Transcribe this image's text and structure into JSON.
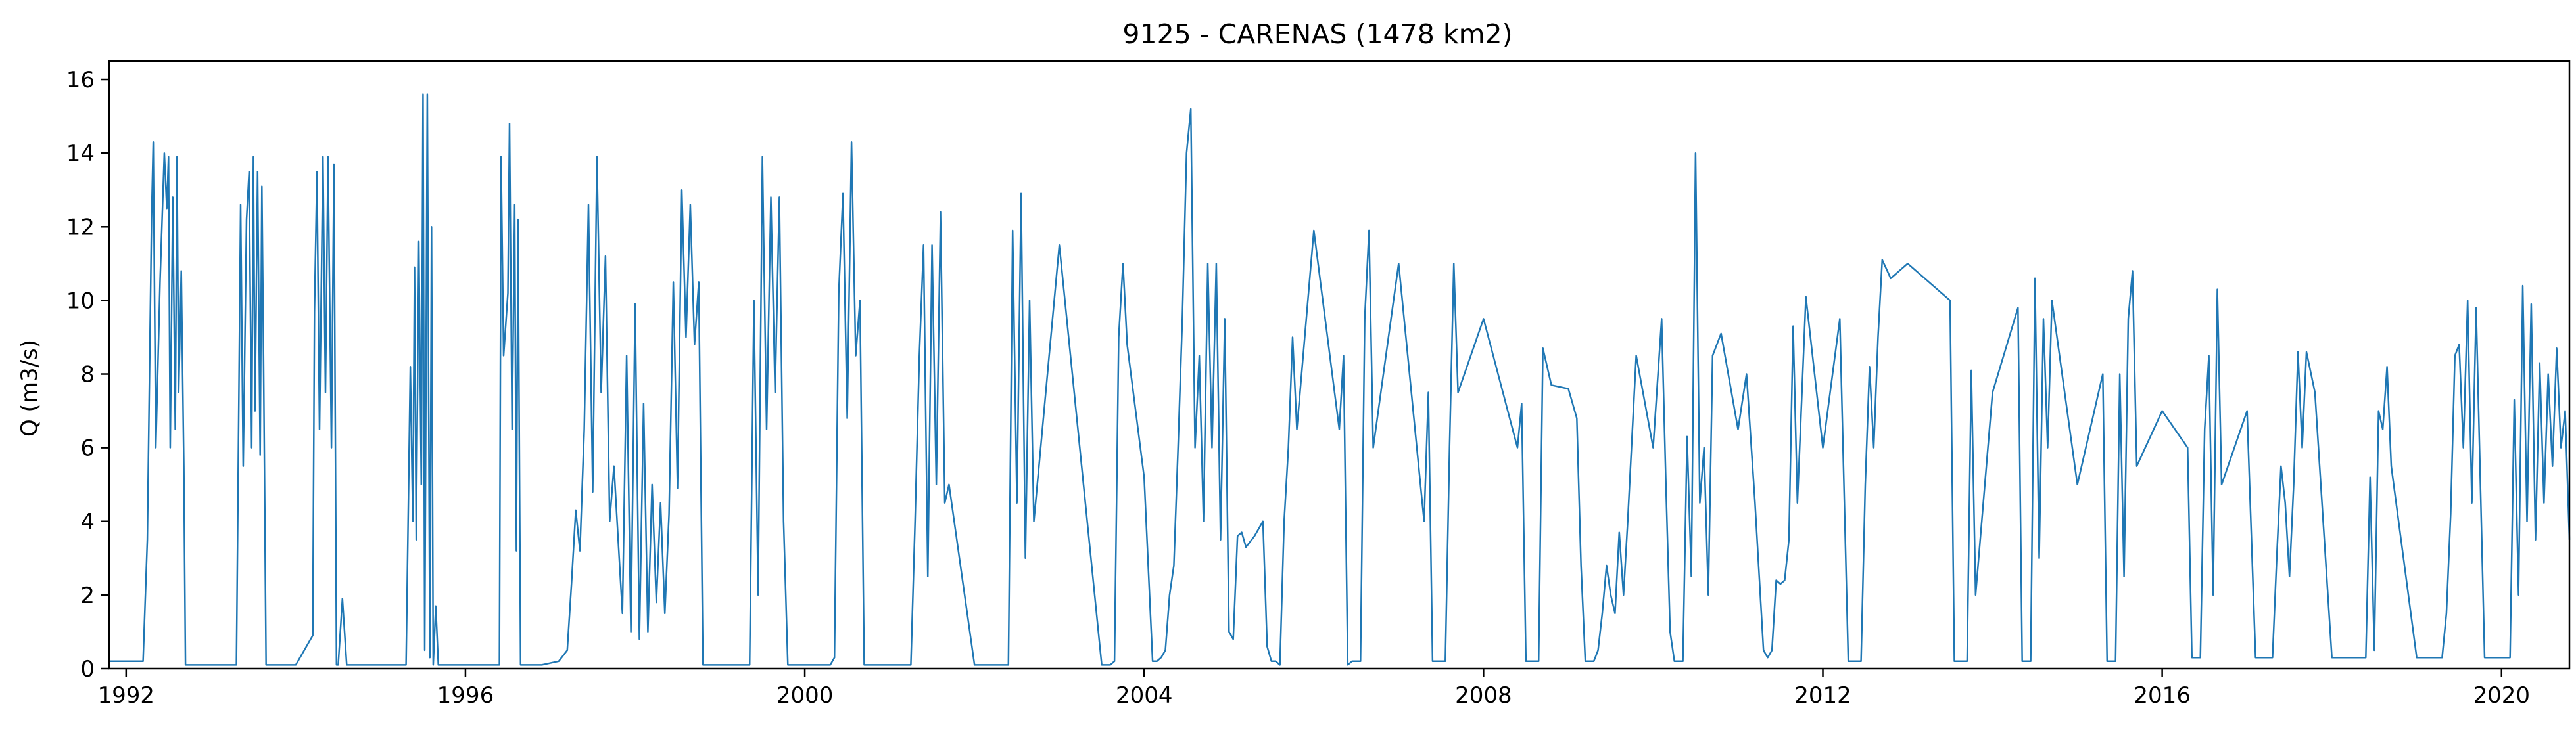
{
  "chart_data": {
    "type": "line",
    "title": "9125 - CARENAS (1478 km2)",
    "xlabel": "",
    "ylabel": "Q (m3/s)",
    "xlim": [
      1991.8,
      2020.8
    ],
    "ylim": [
      0,
      16.5
    ],
    "x_ticks": [
      1992,
      1996,
      2000,
      2004,
      2008,
      2012,
      2016,
      2020
    ],
    "y_ticks": [
      0,
      2,
      4,
      6,
      8,
      10,
      12,
      14,
      16
    ],
    "grid": false,
    "legend": "none",
    "colors": {
      "series": "#1f77b4",
      "axes": "#000000",
      "background": "#ffffff"
    },
    "series": [
      {
        "x": [
          1991.8,
          1992.2,
          1992.25,
          1992.3,
          1992.32,
          1992.35,
          1992.4,
          1992.45,
          1992.48,
          1992.5,
          1992.52,
          1992.55,
          1992.58,
          1992.6,
          1992.62,
          1992.65,
          1992.68,
          1992.7,
          1992.8,
          1993.0,
          1993.3,
          1993.35,
          1993.38,
          1993.42,
          1993.45,
          1993.48,
          1993.5,
          1993.52,
          1993.55,
          1993.58,
          1993.6,
          1993.62,
          1993.65,
          1993.7,
          1994.0,
          1994.2,
          1994.22,
          1994.25,
          1994.28,
          1994.32,
          1994.35,
          1994.38,
          1994.42,
          1994.45,
          1994.48,
          1994.5,
          1994.55,
          1994.6,
          1994.62,
          1994.65,
          1995.0,
          1995.3,
          1995.35,
          1995.38,
          1995.4,
          1995.42,
          1995.45,
          1995.48,
          1995.5,
          1995.52,
          1995.55,
          1995.58,
          1995.6,
          1995.62,
          1995.65,
          1995.68,
          1995.7,
          1995.72,
          1995.75,
          1996.0,
          1996.4,
          1996.42,
          1996.45,
          1996.5,
          1996.52,
          1996.55,
          1996.58,
          1996.6,
          1996.62,
          1996.65,
          1996.7,
          1996.9,
          1997.1,
          1997.2,
          1997.25,
          1997.3,
          1997.35,
          1997.4,
          1997.45,
          1997.5,
          1997.55,
          1997.6,
          1997.65,
          1997.7,
          1997.75,
          1997.8,
          1997.85,
          1997.9,
          1997.95,
          1998.0,
          1998.05,
          1998.1,
          1998.15,
          1998.2,
          1998.25,
          1998.3,
          1998.35,
          1998.4,
          1998.45,
          1998.5,
          1998.55,
          1998.6,
          1998.65,
          1998.7,
          1998.75,
          1998.8,
          1999.0,
          1999.3,
          1999.35,
          1999.4,
          1999.45,
          1999.5,
          1999.55,
          1999.6,
          1999.65,
          1999.7,
          1999.75,
          1999.8,
          2000.0,
          2000.3,
          2000.35,
          2000.4,
          2000.45,
          2000.5,
          2000.55,
          2000.6,
          2000.65,
          2000.7,
          2001.0,
          2001.2,
          2001.25,
          2001.3,
          2001.35,
          2001.4,
          2001.45,
          2001.5,
          2001.55,
          2001.6,
          2001.65,
          2001.7,
          2002.0,
          2002.3,
          2002.35,
          2002.4,
          2002.45,
          2002.5,
          2002.55,
          2002.6,
          2002.65,
          2002.7,
          2003.0,
          2003.5,
          2003.55,
          2003.6,
          2003.65,
          2003.7,
          2003.75,
          2003.8,
          2004.0,
          2004.1,
          2004.15,
          2004.2,
          2004.25,
          2004.3,
          2004.35,
          2004.4,
          2004.45,
          2004.5,
          2004.55,
          2004.6,
          2004.65,
          2004.7,
          2004.75,
          2004.8,
          2004.85,
          2004.9,
          2004.95,
          2005.0,
          2005.05,
          2005.1,
          2005.15,
          2005.2,
          2005.3,
          2005.4,
          2005.45,
          2005.5,
          2005.55,
          2005.6,
          2005.65,
          2005.7,
          2005.75,
          2005.8,
          2006.0,
          2006.3,
          2006.35,
          2006.4,
          2006.45,
          2006.5,
          2006.55,
          2006.6,
          2006.65,
          2006.7,
          2007.0,
          2007.3,
          2007.35,
          2007.4,
          2007.45,
          2007.5,
          2007.55,
          2007.6,
          2007.65,
          2007.7,
          2008.0,
          2008.4,
          2008.45,
          2008.5,
          2008.55,
          2008.6,
          2008.65,
          2008.7,
          2008.8,
          2009.0,
          2009.1,
          2009.15,
          2009.2,
          2009.25,
          2009.3,
          2009.35,
          2009.4,
          2009.45,
          2009.5,
          2009.55,
          2009.6,
          2009.65,
          2009.7,
          2009.8,
          2010.0,
          2010.1,
          2010.15,
          2010.2,
          2010.25,
          2010.3,
          2010.35,
          2010.4,
          2010.45,
          2010.5,
          2010.55,
          2010.6,
          2010.65,
          2010.7,
          2010.8,
          2011.0,
          2011.1,
          2011.2,
          2011.3,
          2011.35,
          2011.4,
          2011.45,
          2011.5,
          2011.55,
          2011.6,
          2011.65,
          2011.7,
          2011.8,
          2012.0,
          2012.2,
          2012.3,
          2012.35,
          2012.4,
          2012.45,
          2012.5,
          2012.55,
          2012.6,
          2012.65,
          2012.7,
          2012.8,
          2013.0,
          2013.5,
          2013.55,
          2013.6,
          2013.65,
          2013.7,
          2013.75,
          2013.8,
          2014.0,
          2014.3,
          2014.35,
          2014.4,
          2014.45,
          2014.5,
          2014.55,
          2014.6,
          2014.65,
          2014.7,
          2015.0,
          2015.3,
          2015.35,
          2015.4,
          2015.45,
          2015.5,
          2015.55,
          2015.6,
          2015.65,
          2015.7,
          2016.0,
          2016.3,
          2016.35,
          2016.4,
          2016.45,
          2016.5,
          2016.55,
          2016.6,
          2016.65,
          2016.7,
          2017.0,
          2017.1,
          2017.2,
          2017.25,
          2017.3,
          2017.35,
          2017.4,
          2017.45,
          2017.5,
          2017.55,
          2017.6,
          2017.65,
          2017.7,
          2017.8,
          2018.0,
          2018.3,
          2018.35,
          2018.4,
          2018.45,
          2018.5,
          2018.55,
          2018.6,
          2018.65,
          2018.7,
          2019.0,
          2019.2,
          2019.25,
          2019.3,
          2019.35,
          2019.4,
          2019.45,
          2019.5,
          2019.55,
          2019.6,
          2019.65,
          2019.7,
          2019.8,
          2020.0,
          2020.1,
          2020.15,
          2020.2,
          2020.25,
          2020.3,
          2020.35,
          2020.4,
          2020.45,
          2020.5,
          2020.55,
          2020.6,
          2020.65,
          2020.7,
          2020.75,
          2020.8
        ],
        "y": [
          0.2,
          0.2,
          3.5,
          12.2,
          14.3,
          6.0,
          10.5,
          14.0,
          12.5,
          13.9,
          6.0,
          12.8,
          6.5,
          13.9,
          7.5,
          10.8,
          5.5,
          0.1,
          0.1,
          0.1,
          0.1,
          12.6,
          5.5,
          12.2,
          13.5,
          6.0,
          13.9,
          7.0,
          13.5,
          5.8,
          13.1,
          8.5,
          0.1,
          0.1,
          0.1,
          0.9,
          9.7,
          13.5,
          6.5,
          13.9,
          7.5,
          13.9,
          6.0,
          13.7,
          0.1,
          0.1,
          1.9,
          0.1,
          0.1,
          0.1,
          0.1,
          0.1,
          8.2,
          4.0,
          10.9,
          3.5,
          11.6,
          5.0,
          15.6,
          0.5,
          15.6,
          0.3,
          12.0,
          0.1,
          1.7,
          0.1,
          0.1,
          0.1,
          0.1,
          0.1,
          0.1,
          13.9,
          8.5,
          10.2,
          14.8,
          6.5,
          12.6,
          3.2,
          12.2,
          0.1,
          0.1,
          0.1,
          0.2,
          0.5,
          2.3,
          4.3,
          3.2,
          6.5,
          12.6,
          4.8,
          13.9,
          7.5,
          11.2,
          4.0,
          5.5,
          3.5,
          1.5,
          8.5,
          1.0,
          9.9,
          0.8,
          7.2,
          1.0,
          5.0,
          1.8,
          4.5,
          1.5,
          4.2,
          10.5,
          4.9,
          13.0,
          9.0,
          12.6,
          8.8,
          10.5,
          0.1,
          0.1,
          0.1,
          0.1,
          10.0,
          2.0,
          13.9,
          6.5,
          12.8,
          7.5,
          12.8,
          4.0,
          0.1,
          0.1,
          0.1,
          0.3,
          10.2,
          12.9,
          6.8,
          14.3,
          8.5,
          10.0,
          0.1,
          0.1,
          0.1,
          0.1,
          4.0,
          8.5,
          11.5,
          2.5,
          11.5,
          5.0,
          12.4,
          4.5,
          5.0,
          0.1,
          0.1,
          0.1,
          0.1,
          11.9,
          4.5,
          12.9,
          3.0,
          10.0,
          4.0,
          11.5,
          0.1,
          0.1,
          0.1,
          0.2,
          9.0,
          11.0,
          8.8,
          5.2,
          0.2,
          0.2,
          0.3,
          0.5,
          2.0,
          2.8,
          6.0,
          9.5,
          14.0,
          15.2,
          6.0,
          8.5,
          4.0,
          11.0,
          6.0,
          11.0,
          3.5,
          9.5,
          1.0,
          0.8,
          3.6,
          3.7,
          3.3,
          3.6,
          4.0,
          0.6,
          0.2,
          0.2,
          0.1,
          4.0,
          6.0,
          9.0,
          6.5,
          11.9,
          6.5,
          8.5,
          0.1,
          0.2,
          0.2,
          0.2,
          9.5,
          11.9,
          6.0,
          11.0,
          4.0,
          7.5,
          0.2,
          0.2,
          0.2,
          0.2,
          6.0,
          11.0,
          7.5,
          9.5,
          6.0,
          7.2,
          0.2,
          0.2,
          0.2,
          0.2,
          8.7,
          7.7,
          7.6,
          6.8,
          2.8,
          0.2,
          0.2,
          0.2,
          0.5,
          1.5,
          2.8,
          2.0,
          1.5,
          3.7,
          2.0,
          4.0,
          8.5,
          6.0,
          9.5,
          5.0,
          1.0,
          0.2,
          0.2,
          0.2,
          6.3,
          2.5,
          14.0,
          4.5,
          6.0,
          2.0,
          8.5,
          9.1,
          6.5,
          8.0,
          4.5,
          0.5,
          0.3,
          0.5,
          2.4,
          2.3,
          2.4,
          3.5,
          9.3,
          4.5,
          10.1,
          6.0,
          9.5,
          0.2,
          0.2,
          0.2,
          0.2,
          5.0,
          8.2,
          6.0,
          9.0,
          11.1,
          10.6,
          11.0,
          10.0,
          0.2,
          0.2,
          0.2,
          0.2,
          8.1,
          2.0,
          7.5,
          9.8,
          0.2,
          0.2,
          0.2,
          10.6,
          3.0,
          9.5,
          6.0,
          10.0,
          5.0,
          8.0,
          0.2,
          0.2,
          0.2,
          8.0,
          2.5,
          9.5,
          10.8,
          5.5,
          7.0,
          6.0,
          0.3,
          0.3,
          0.3,
          6.5,
          8.5,
          2.0,
          10.3,
          5.0,
          7.0,
          0.3,
          0.3,
          0.3,
          0.3,
          3.0,
          5.5,
          4.5,
          2.5,
          5.0,
          8.6,
          6.0,
          8.6,
          7.5,
          0.3,
          0.3,
          0.3,
          0.3,
          5.2,
          0.5,
          7.0,
          6.5,
          8.2,
          5.5,
          0.3,
          0.3,
          0.3,
          0.3,
          1.5,
          4.2,
          8.5,
          8.8,
          6.0,
          10.0,
          4.5,
          9.8,
          0.3,
          0.3,
          0.3,
          7.3,
          2.0,
          10.4,
          4.0,
          9.9,
          3.5,
          8.3,
          4.5,
          8.0,
          5.5,
          8.7,
          6.0,
          7.0,
          3.5
        ]
      }
    ]
  }
}
